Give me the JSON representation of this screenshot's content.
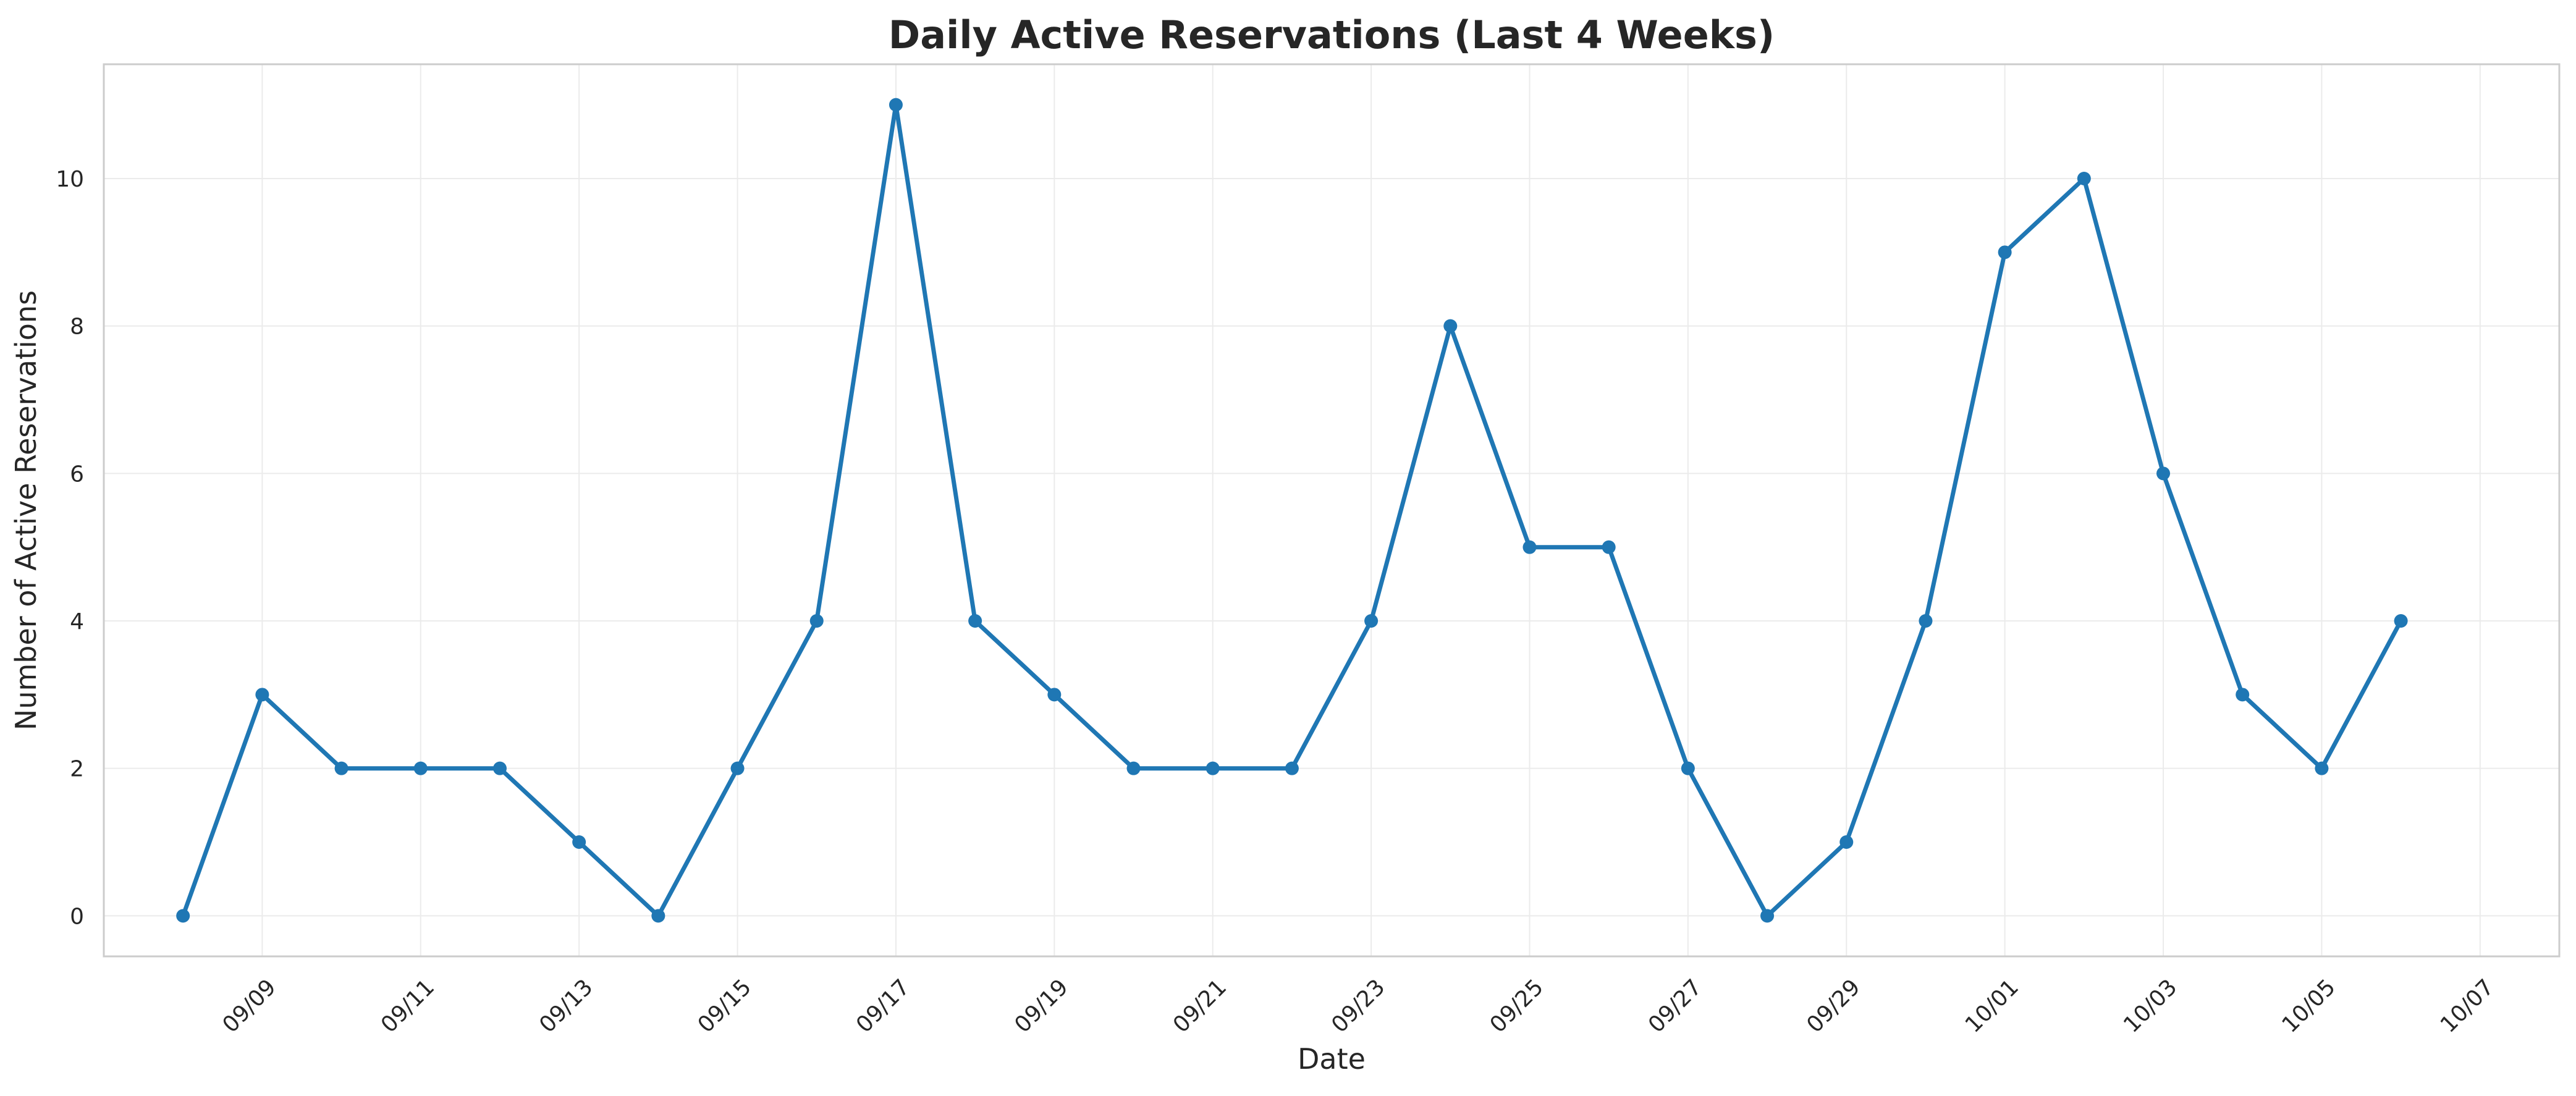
{
  "chart_data": {
    "type": "line",
    "title": "Daily Active Reservations (Last 4 Weeks)",
    "xlabel": "Date",
    "ylabel": "Number of Active Reservations",
    "x_dates": [
      "2024-09-08",
      "2024-09-09",
      "2024-09-10",
      "2024-09-11",
      "2024-09-12",
      "2024-09-13",
      "2024-09-14",
      "2024-09-15",
      "2024-09-16",
      "2024-09-17",
      "2024-09-18",
      "2024-09-19",
      "2024-09-20",
      "2024-09-21",
      "2024-09-22",
      "2024-09-23",
      "2024-09-24",
      "2024-09-25",
      "2024-09-26",
      "2024-09-27",
      "2024-09-28",
      "2024-09-29",
      "2024-09-30",
      "2024-10-01",
      "2024-10-02",
      "2024-10-03",
      "2024-10-04",
      "2024-10-05",
      "2024-10-06"
    ],
    "series": [
      {
        "values": [
          0,
          3,
          2,
          2,
          2,
          1,
          0,
          2,
          4,
          11,
          4,
          3,
          2,
          2,
          2,
          4,
          8,
          5,
          5,
          2,
          0,
          1,
          4,
          9,
          10,
          6,
          3,
          2,
          4
        ]
      }
    ],
    "x_ticks": [
      {
        "date": "2024-09-09",
        "label": "09/09"
      },
      {
        "date": "2024-09-11",
        "label": "09/11"
      },
      {
        "date": "2024-09-13",
        "label": "09/13"
      },
      {
        "date": "2024-09-15",
        "label": "09/15"
      },
      {
        "date": "2024-09-17",
        "label": "09/17"
      },
      {
        "date": "2024-09-19",
        "label": "09/19"
      },
      {
        "date": "2024-09-21",
        "label": "09/21"
      },
      {
        "date": "2024-09-23",
        "label": "09/23"
      },
      {
        "date": "2024-09-25",
        "label": "09/25"
      },
      {
        "date": "2024-09-27",
        "label": "09/27"
      },
      {
        "date": "2024-09-29",
        "label": "09/29"
      },
      {
        "date": "2024-10-01",
        "label": "10/01"
      },
      {
        "date": "2024-10-03",
        "label": "10/03"
      },
      {
        "date": "2024-10-05",
        "label": "10/05"
      },
      {
        "date": "2024-10-07",
        "label": "10/07"
      }
    ],
    "y_ticks": [
      {
        "value": 0,
        "label": "0"
      },
      {
        "value": 2,
        "label": "2"
      },
      {
        "value": 4,
        "label": "4"
      },
      {
        "value": 6,
        "label": "6"
      },
      {
        "value": 8,
        "label": "8"
      },
      {
        "value": 10,
        "label": "10"
      }
    ],
    "xlim": [
      "2024-09-07",
      "2024-10-08"
    ],
    "ylim": [
      -0.55,
      11.55
    ],
    "grid": true,
    "legend": "none",
    "colors": {
      "line": "#1f77b4",
      "grid": "#ebebeb",
      "frame": "#cccccc"
    }
  }
}
